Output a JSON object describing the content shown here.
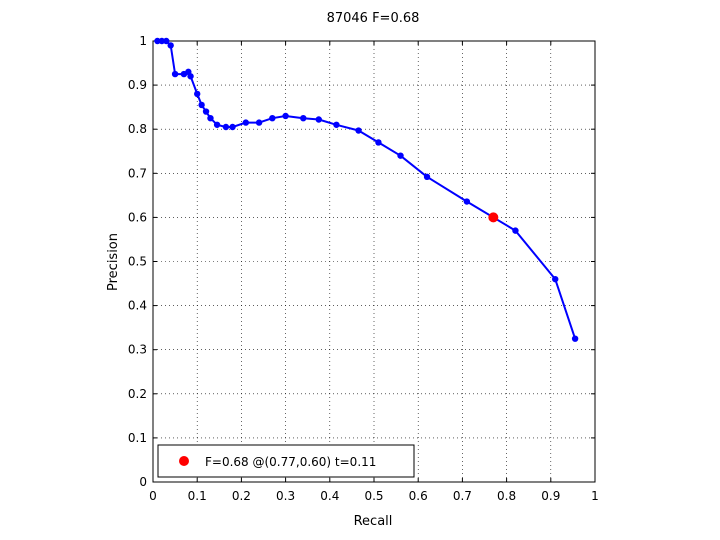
{
  "chart_data": {
    "type": "line",
    "title": "87046 F=0.68",
    "xlabel": "Recall",
    "ylabel": "Precision",
    "xlim": [
      0,
      1
    ],
    "ylim": [
      0,
      1
    ],
    "grid": true,
    "grid_style": "dotted",
    "xticks": [
      "0",
      "0.1",
      "0.2",
      "0.3",
      "0.4",
      "0.5",
      "0.6",
      "0.7",
      "0.8",
      "0.9",
      "1"
    ],
    "yticks": [
      "0",
      "0.1",
      "0.2",
      "0.3",
      "0.4",
      "0.5",
      "0.6",
      "0.7",
      "0.8",
      "0.9",
      "1"
    ],
    "series": [
      {
        "color": "#0000ff",
        "points": [
          [
            0.01,
            1.0
          ],
          [
            0.02,
            1.0
          ],
          [
            0.03,
            1.0
          ],
          [
            0.04,
            0.99
          ],
          [
            0.05,
            0.925
          ],
          [
            0.07,
            0.925
          ],
          [
            0.08,
            0.93
          ],
          [
            0.085,
            0.92
          ],
          [
            0.1,
            0.88
          ],
          [
            0.11,
            0.855
          ],
          [
            0.12,
            0.84
          ],
          [
            0.13,
            0.825
          ],
          [
            0.145,
            0.81
          ],
          [
            0.165,
            0.805
          ],
          [
            0.18,
            0.805
          ],
          [
            0.21,
            0.815
          ],
          [
            0.24,
            0.815
          ],
          [
            0.27,
            0.825
          ],
          [
            0.3,
            0.83
          ],
          [
            0.34,
            0.825
          ],
          [
            0.375,
            0.822
          ],
          [
            0.415,
            0.81
          ],
          [
            0.465,
            0.797
          ],
          [
            0.51,
            0.77
          ],
          [
            0.56,
            0.74
          ],
          [
            0.62,
            0.692
          ],
          [
            0.71,
            0.636
          ],
          [
            0.82,
            0.57
          ],
          [
            0.91,
            0.46
          ],
          [
            0.955,
            0.325
          ]
        ]
      }
    ],
    "highlight": {
      "x": 0.77,
      "y": 0.6,
      "color": "#ff0000"
    },
    "legend": {
      "position": "bottom-left",
      "entries": [
        {
          "label": "F=0.68 @(0.77,0.60) t=0.11",
          "color": "#ff0000"
        }
      ]
    }
  }
}
